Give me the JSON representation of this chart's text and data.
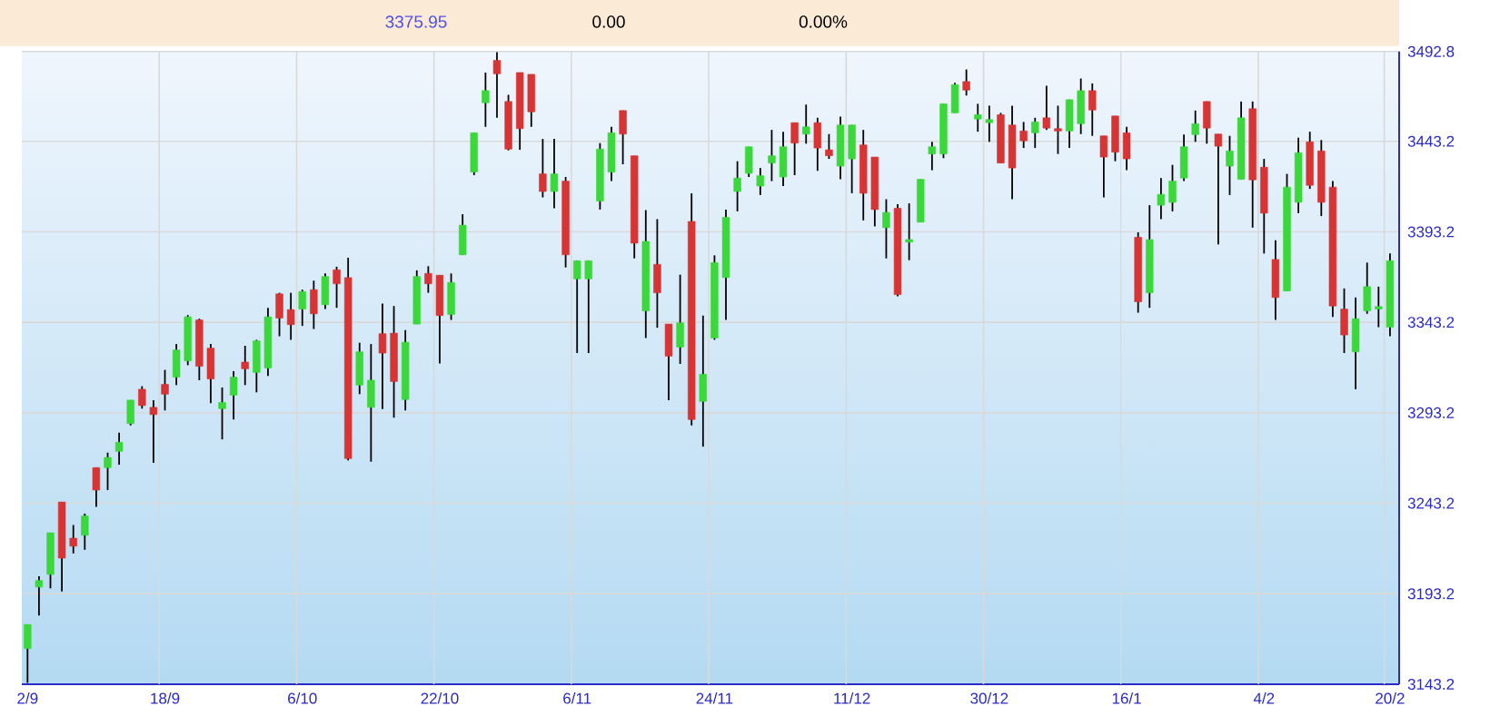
{
  "chart_data": {
    "type": "candlestick",
    "annotations": [
      "3375.95",
      "0.00",
      "0.00%"
    ],
    "categories": [
      "2/9",
      null,
      null,
      null,
      null,
      null,
      null,
      null,
      null,
      null,
      null,
      null,
      "18/9",
      null,
      null,
      null,
      null,
      null,
      null,
      null,
      null,
      null,
      null,
      null,
      "6/10",
      null,
      null,
      null,
      null,
      null,
      null,
      null,
      null,
      null,
      null,
      null,
      "22/10",
      null,
      null,
      null,
      null,
      null,
      null,
      null,
      null,
      null,
      null,
      null,
      "6/11",
      null,
      null,
      null,
      null,
      null,
      null,
      null,
      null,
      null,
      null,
      null,
      "24/11",
      null,
      null,
      null,
      null,
      null,
      null,
      null,
      null,
      null,
      null,
      null,
      "11/12",
      null,
      null,
      null,
      null,
      null,
      null,
      null,
      null,
      null,
      null,
      null,
      "30/12",
      null,
      null,
      null,
      null,
      null,
      null,
      null,
      null,
      null,
      null,
      null,
      "16/1",
      null,
      null,
      null,
      null,
      null,
      null,
      null,
      null,
      null,
      null,
      null,
      "4/2",
      null,
      null,
      null,
      null,
      null,
      null,
      null,
      null,
      null,
      null,
      "20/2"
    ],
    "ohlc": [
      [
        3162.9,
        3176.2,
        3144,
        3176.2
      ],
      [
        3196.9,
        3202.9,
        3181.2,
        3200.5
      ],
      [
        3203.9,
        3226.9,
        3196.2,
        3226.9
      ],
      [
        3243.9,
        3243.9,
        3194.5,
        3212.9
      ],
      [
        3223.9,
        3231.2,
        3215.5,
        3219.5
      ],
      [
        3225.5,
        3237.5,
        3217.5,
        3236.2
      ],
      [
        3262.9,
        3262.9,
        3241.2,
        3250.5
      ],
      [
        3262.9,
        3271.2,
        3250.5,
        3268.5
      ],
      [
        3271.9,
        3282.2,
        3264.5,
        3276.9
      ],
      [
        3287.2,
        3300.2,
        3286.2,
        3300.2
      ],
      [
        3306.2,
        3307.9,
        3295.5,
        3297.2
      ],
      [
        3296.2,
        3300.2,
        3265.5,
        3292.2
      ],
      [
        3308.9,
        3316.9,
        3294.5,
        3303.5
      ],
      [
        3312.9,
        3331.2,
        3308.5,
        3327.9
      ],
      [
        3321.9,
        3347.2,
        3319.5,
        3346.2
      ],
      [
        3344.5,
        3345.2,
        3311.2,
        3318.9
      ],
      [
        3328.9,
        3331.2,
        3298.5,
        3311.9
      ],
      [
        3295.5,
        3307.2,
        3278.5,
        3298.9
      ],
      [
        3302.9,
        3316.2,
        3289.5,
        3312.9
      ],
      [
        3321.2,
        3330.2,
        3308.5,
        3317.5
      ],
      [
        3315.5,
        3333.5,
        3304.5,
        3332.9
      ],
      [
        3317.9,
        3351.2,
        3313.5,
        3346.2
      ],
      [
        3358.9,
        3359.5,
        3335.5,
        3345.5
      ],
      [
        3350.2,
        3359.5,
        3333.5,
        3341.9
      ],
      [
        3350.5,
        3361.2,
        3341.2,
        3360.2
      ],
      [
        3361.2,
        3366.2,
        3339.5,
        3347.9
      ],
      [
        3352.9,
        3370.2,
        3350.5,
        3368.5
      ],
      [
        3372.2,
        3373.9,
        3351.2,
        3364.5
      ],
      [
        3367.9,
        3378.9,
        3266.9,
        3267.9
      ],
      [
        3308.5,
        3331.9,
        3303.5,
        3326.9
      ],
      [
        3296.2,
        3331.2,
        3266.2,
        3311.2
      ],
      [
        3336.9,
        3353.5,
        3295.2,
        3326.2
      ],
      [
        3337.2,
        3352.2,
        3290.5,
        3310.5
      ],
      [
        3300.5,
        3338.9,
        3294.5,
        3332.2
      ],
      [
        3342.2,
        3371.9,
        3342.2,
        3368.5
      ],
      [
        3370.2,
        3374.2,
        3359.5,
        3364.5
      ],
      [
        3369.2,
        3369.2,
        3320.5,
        3346.9
      ],
      [
        3347.5,
        3370.2,
        3344.5,
        3365.2
      ],
      [
        3380.5,
        3402.9,
        3380.5,
        3396.9
      ],
      [
        3426.2,
        3447.9,
        3424.5,
        3447.9
      ],
      [
        3464.5,
        3481.2,
        3451.2,
        3471.2
      ],
      [
        3487.9,
        3492.5,
        3456.2,
        3480.5
      ],
      [
        3465.2,
        3468.9,
        3438.2,
        3438.9
      ],
      [
        3481.2,
        3481.2,
        3438.5,
        3450.2
      ],
      [
        3480.2,
        3480.2,
        3451.2,
        3459.5
      ],
      [
        3425.2,
        3444.5,
        3412.2,
        3415.5
      ],
      [
        3415.5,
        3444.5,
        3406.2,
        3425.2
      ],
      [
        3421.2,
        3423.5,
        3373.5,
        3380.5
      ],
      [
        3367.2,
        3377.2,
        3326.2,
        3377.2
      ],
      [
        3367.2,
        3377.2,
        3326.2,
        3377.2
      ],
      [
        3410.2,
        3442.2,
        3405.5,
        3438.9
      ],
      [
        3426.2,
        3451.2,
        3421.2,
        3447.9
      ],
      [
        3460.2,
        3460.2,
        3430.5,
        3447.2
      ],
      [
        3435.2,
        3435.2,
        3378.5,
        3386.9
      ],
      [
        3349.5,
        3405.2,
        3334.5,
        3387.9
      ],
      [
        3375.2,
        3400.2,
        3340.2,
        3359.5
      ],
      [
        3342.2,
        3342.2,
        3300.2,
        3324.5
      ],
      [
        3329.5,
        3369.5,
        3320.2,
        3342.9
      ],
      [
        3398.9,
        3414.5,
        3286.2,
        3289.5
      ],
      [
        3299.5,
        3346.9,
        3274.5,
        3314.5
      ],
      [
        3334.5,
        3380.2,
        3333.5,
        3376.2
      ],
      [
        3367.9,
        3405.5,
        3344.5,
        3401.2
      ],
      [
        3415.5,
        3432.2,
        3404.5,
        3422.9
      ],
      [
        3425.5,
        3440.2,
        3423.5,
        3440.2
      ],
      [
        3418.5,
        3428.5,
        3413.5,
        3424.2
      ],
      [
        3431.2,
        3449.5,
        3421.2,
        3435.2
      ],
      [
        3423.5,
        3448.5,
        3418.5,
        3440.2
      ],
      [
        3453.5,
        3453.5,
        3424.5,
        3442.2
      ],
      [
        3447.2,
        3463.5,
        3441.9,
        3451.2
      ],
      [
        3453.5,
        3456.2,
        3426.9,
        3439.5
      ],
      [
        3438.5,
        3447.2,
        3433.5,
        3435.2
      ],
      [
        3429.5,
        3456.9,
        3422.2,
        3452.2
      ],
      [
        3433.5,
        3452.2,
        3414.5,
        3452.2
      ],
      [
        3441.2,
        3449.5,
        3399.5,
        3414.5
      ],
      [
        3434.5,
        3434.5,
        3396.2,
        3405.5
      ],
      [
        3395.5,
        3411.2,
        3378.5,
        3403.9
      ],
      [
        3406.2,
        3408.5,
        3357.5,
        3358.5
      ],
      [
        3387.5,
        3408.9,
        3377.5,
        3388.9
      ],
      [
        3398.5,
        3422.2,
        3398.5,
        3422.2
      ],
      [
        3436.2,
        3442.9,
        3427.2,
        3440.2
      ],
      [
        3436.2,
        3463.9,
        3433.9,
        3463.9
      ],
      [
        3458.9,
        3475.5,
        3458.9,
        3474.5
      ],
      [
        3476.2,
        3482.9,
        3468.5,
        3471.5
      ],
      [
        3455.5,
        3463.9,
        3448.5,
        3457.9
      ],
      [
        3453.5,
        3462.9,
        3442.9,
        3455.2
      ],
      [
        3457.9,
        3458.9,
        3431.2,
        3431.2
      ],
      [
        3452.2,
        3462.9,
        3411.2,
        3428.5
      ],
      [
        3448.9,
        3453.9,
        3439.5,
        3443.5
      ],
      [
        3447.9,
        3456.2,
        3439.5,
        3453.9
      ],
      [
        3456.2,
        3473.9,
        3449.5,
        3450.5
      ],
      [
        3450.2,
        3462.9,
        3436.2,
        3448.9
      ],
      [
        3448.9,
        3466.2,
        3439.5,
        3466.2
      ],
      [
        3452.9,
        3477.9,
        3447.2,
        3471.2
      ],
      [
        3471.2,
        3475.2,
        3446.2,
        3460.5
      ],
      [
        3446.2,
        3446.2,
        3412.2,
        3434.5
      ],
      [
        3457.2,
        3457.2,
        3432.2,
        3437.2
      ],
      [
        3447.9,
        3451.2,
        3427.2,
        3433.5
      ],
      [
        3390.2,
        3392.9,
        3348.5,
        3354.5
      ],
      [
        3359.5,
        3407.9,
        3351.2,
        3388.9
      ],
      [
        3407.9,
        3422.9,
        3400.2,
        3413.9
      ],
      [
        3409.5,
        3430.2,
        3404.5,
        3421.2
      ],
      [
        3422.9,
        3446.9,
        3421.2,
        3440.2
      ],
      [
        3446.9,
        3460.2,
        3442.9,
        3452.9
      ],
      [
        3465.2,
        3465.2,
        3441.9,
        3450.5
      ],
      [
        3447.2,
        3447.2,
        3386.2,
        3440.5
      ],
      [
        3429.5,
        3446.2,
        3413.5,
        3437.9
      ],
      [
        3422.2,
        3465.2,
        3422.2,
        3456.2
      ],
      [
        3461.2,
        3465.2,
        3395.5,
        3421.9
      ],
      [
        3428.9,
        3433.5,
        3381.2,
        3403.5
      ],
      [
        3377.9,
        3388.5,
        3344.5,
        3356.9
      ],
      [
        3360.5,
        3425.2,
        3360.5,
        3417.9
      ],
      [
        3409.5,
        3445.2,
        3403.5,
        3436.9
      ],
      [
        3442.9,
        3448.5,
        3416.9,
        3418.9
      ],
      [
        3437.9,
        3443.9,
        3401.9,
        3409.5
      ],
      [
        3417.9,
        3421.2,
        3346.2,
        3352.2
      ],
      [
        3350.5,
        3361.9,
        3326.2,
        3336.2
      ],
      [
        3326.9,
        3356.9,
        3306.2,
        3345.2
      ],
      [
        3349.5,
        3376.2,
        3347.9,
        3362.9
      ],
      [
        3350.5,
        3362.9,
        3340.5,
        3351.9
      ],
      [
        3340.5,
        3381.2,
        3335.5,
        3377.2
      ]
    ],
    "colors": [
      "#3ad83a",
      "#3ad83a",
      "#3ad83a",
      "#d83434",
      "#d83434",
      "#3ad83a",
      "#d83434",
      "#3ad83a",
      "#3ad83a",
      "#3ad83a",
      "#d83434",
      "#d83434",
      "#d83434",
      "#3ad83a",
      "#3ad83a",
      "#d83434",
      "#d83434",
      "#3ad83a",
      "#3ad83a",
      "#d83434",
      "#3ad83a",
      "#3ad83a",
      "#d83434",
      "#d83434",
      "#3ad83a",
      "#d83434",
      "#3ad83a",
      "#d83434",
      "#d83434",
      "#3ad83a",
      "#3ad83a",
      "#d83434",
      "#d83434",
      "#3ad83a",
      "#3ad83a",
      "#d83434",
      "#d83434",
      "#3ad83a",
      "#3ad83a",
      "#3ad83a",
      "#3ad83a",
      "#d83434",
      "#d83434",
      "#d83434",
      "#d83434",
      "#d83434",
      "#3ad83a",
      "#d83434",
      "#3ad83a",
      "#3ad83a",
      "#3ad83a",
      "#3ad83a",
      "#d83434",
      "#d83434",
      "#3ad83a",
      "#d83434",
      "#d83434",
      "#3ad83a",
      "#d83434",
      "#3ad83a",
      "#3ad83a",
      "#3ad83a",
      "#3ad83a",
      "#3ad83a",
      "#3ad83a",
      "#3ad83a",
      "#3ad83a",
      "#d83434",
      "#3ad83a",
      "#d83434",
      "#d83434",
      "#3ad83a",
      "#3ad83a",
      "#d83434",
      "#d83434",
      "#3ad83a",
      "#d83434",
      "#3ad83a",
      "#3ad83a",
      "#3ad83a",
      "#3ad83a",
      "#3ad83a",
      "#d83434",
      "#3ad83a",
      "#3ad83a",
      "#d83434",
      "#d83434",
      "#d83434",
      "#3ad83a",
      "#d83434",
      "#d83434",
      "#3ad83a",
      "#3ad83a",
      "#d83434",
      "#d83434",
      "#d83434",
      "#d83434",
      "#d83434",
      "#3ad83a",
      "#3ad83a",
      "#3ad83a",
      "#3ad83a",
      "#3ad83a",
      "#d83434",
      "#d83434",
      "#3ad83a",
      "#3ad83a",
      "#d83434",
      "#d83434",
      "#d83434",
      "#3ad83a",
      "#3ad83a",
      "#d83434",
      "#d83434",
      "#d83434",
      "#d83434",
      "#3ad83a",
      "#3ad83a",
      "#3ad83a",
      "#3ad83a"
    ],
    "ylim": [
      3143.2,
      3492.8
    ],
    "yticks": [
      3143.2,
      3193.2,
      3243.2,
      3293.2,
      3343.2,
      3393.2,
      3443.2,
      3492.8
    ],
    "grid": true
  }
}
